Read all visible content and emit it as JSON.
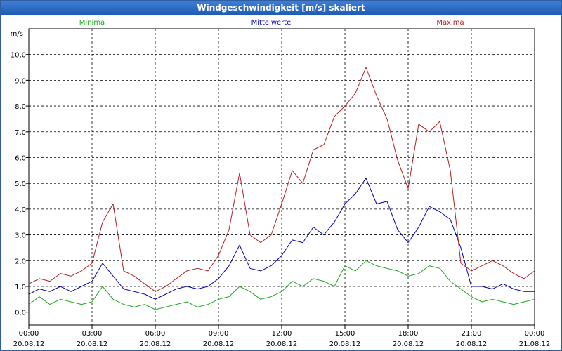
{
  "window": {
    "title": "Windgeschwindigkeit [m/s] skaliert"
  },
  "chart_data": {
    "type": "line",
    "title": "Windgeschwindigkeit [m/s] skaliert",
    "ylabel": "m/s",
    "xlabel": "",
    "ylim": [
      -0.5,
      11
    ],
    "xlim_hours": [
      0,
      24
    ],
    "grid": true,
    "yticks": [
      0,
      1,
      2,
      3,
      4,
      5,
      6,
      7,
      8,
      9,
      10
    ],
    "ytick_labels": [
      "0,0",
      "1,0",
      "2,0",
      "3,0",
      "4,0",
      "5,0",
      "6,0",
      "7,0",
      "8,0",
      "9,0",
      "10,0"
    ],
    "xticks": [
      {
        "hour": 0,
        "time": "00:00",
        "date": "20.08.12"
      },
      {
        "hour": 3,
        "time": "03:00",
        "date": "20.08.12"
      },
      {
        "hour": 6,
        "time": "06:00",
        "date": "20.08.12"
      },
      {
        "hour": 9,
        "time": "09:00",
        "date": "20.08.12"
      },
      {
        "hour": 12,
        "time": "12:00",
        "date": "20.08.12"
      },
      {
        "hour": 15,
        "time": "15:00",
        "date": "20.08.12"
      },
      {
        "hour": 18,
        "time": "18:00",
        "date": "20.08.12"
      },
      {
        "hour": 21,
        "time": "21:00",
        "date": "20.08.12"
      },
      {
        "hour": 24,
        "time": "00:00",
        "date": "21.08.12"
      }
    ],
    "x_hours": [
      0,
      0.5,
      1,
      1.5,
      2,
      2.5,
      3,
      3.5,
      4,
      4.5,
      5,
      5.5,
      6,
      6.5,
      7,
      7.5,
      8,
      8.5,
      9,
      9.5,
      10,
      10.5,
      11,
      11.5,
      12,
      12.5,
      13,
      13.5,
      14,
      14.5,
      15,
      15.5,
      16,
      16.5,
      17,
      17.5,
      18,
      18.5,
      19,
      19.5,
      20,
      20.5,
      21,
      21.5,
      22,
      22.5,
      23,
      23.5,
      24
    ],
    "series": [
      {
        "name": "Minima",
        "color": "#1aa81a",
        "values": [
          0.3,
          0.6,
          0.3,
          0.5,
          0.4,
          0.3,
          0.4,
          1.0,
          0.5,
          0.3,
          0.2,
          0.3,
          0.1,
          0.2,
          0.3,
          0.4,
          0.2,
          0.3,
          0.5,
          0.6,
          1.0,
          0.8,
          0.5,
          0.6,
          0.8,
          1.2,
          1.0,
          1.3,
          1.2,
          1.0,
          1.8,
          1.6,
          2.0,
          1.8,
          1.7,
          1.6,
          1.4,
          1.5,
          1.8,
          1.7,
          1.2,
          0.9,
          0.6,
          0.4,
          0.5,
          0.4,
          0.3,
          0.4,
          0.5
        ]
      },
      {
        "name": "Mittelwerte",
        "color": "#0000b4",
        "values": [
          0.7,
          0.9,
          0.8,
          1.0,
          0.8,
          1.0,
          1.2,
          1.9,
          1.4,
          0.9,
          0.8,
          0.7,
          0.5,
          0.7,
          0.9,
          1.0,
          0.9,
          1.0,
          1.3,
          1.8,
          2.6,
          1.7,
          1.6,
          1.8,
          2.2,
          2.8,
          2.7,
          3.3,
          3.0,
          3.5,
          4.2,
          4.6,
          5.2,
          4.2,
          4.3,
          3.2,
          2.7,
          3.3,
          4.1,
          3.9,
          3.6,
          2.5,
          1.0,
          1.0,
          0.9,
          1.1,
          0.9,
          0.8,
          0.8
        ]
      },
      {
        "name": "Maxima",
        "color": "#b41e1e",
        "values": [
          1.1,
          1.3,
          1.2,
          1.5,
          1.4,
          1.6,
          1.9,
          3.5,
          4.2,
          1.6,
          1.4,
          1.1,
          0.8,
          1.0,
          1.3,
          1.6,
          1.7,
          1.6,
          2.2,
          3.2,
          5.4,
          3.0,
          2.7,
          3.0,
          4.2,
          5.5,
          5.0,
          6.3,
          6.5,
          7.6,
          8.0,
          8.5,
          9.5,
          8.4,
          7.5,
          5.9,
          4.8,
          7.3,
          7.0,
          7.4,
          5.5,
          1.9,
          1.6,
          1.8,
          2.0,
          1.8,
          1.5,
          1.3,
          1.6
        ]
      }
    ]
  }
}
